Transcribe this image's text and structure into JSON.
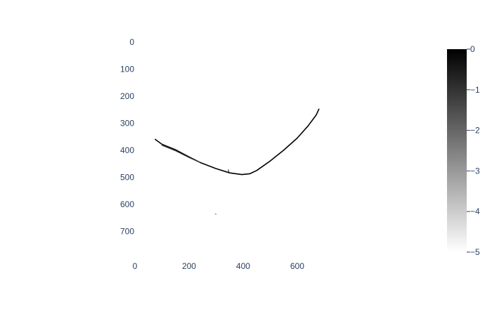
{
  "chart_data": {
    "type": "heatmap",
    "title": "",
    "xlabel": "",
    "ylabel": "",
    "xlim": [
      0,
      790
    ],
    "ylim": [
      790,
      0
    ],
    "x_ticks": [
      0,
      200,
      400,
      600
    ],
    "y_ticks": [
      0,
      100,
      200,
      300,
      400,
      500,
      600,
      700
    ],
    "y_reversed": true,
    "grid": false,
    "colorscale": "greys",
    "colorbar": {
      "min": -5,
      "max": 0,
      "ticks": [
        0,
        -1,
        -2,
        -3,
        -4,
        -5
      ],
      "placement": "right"
    },
    "traces": [
      {
        "name": "",
        "value": 0,
        "points": [
          [
            75,
            360
          ],
          [
            100,
            378
          ],
          [
            150,
            398
          ],
          [
            200,
            425
          ],
          [
            240,
            445
          ],
          [
            300,
            468
          ],
          [
            350,
            484
          ],
          [
            395,
            490
          ],
          [
            425,
            487
          ],
          [
            450,
            475
          ],
          [
            500,
            440
          ],
          [
            550,
            400
          ],
          [
            600,
            355
          ],
          [
            640,
            310
          ],
          [
            670,
            270
          ],
          [
            680,
            248
          ]
        ]
      },
      {
        "name": "",
        "value": -1,
        "points": [
          [
            100,
            382
          ],
          [
            150,
            402
          ],
          [
            200,
            427
          ],
          [
            240,
            445
          ]
        ]
      },
      {
        "name": "",
        "value": -0.5,
        "points": [
          [
            345,
            472
          ],
          [
            348,
            483
          ]
        ]
      },
      {
        "name": "",
        "value": -2,
        "points": [
          [
            297,
            636
          ],
          [
            300,
            637
          ]
        ]
      }
    ]
  }
}
